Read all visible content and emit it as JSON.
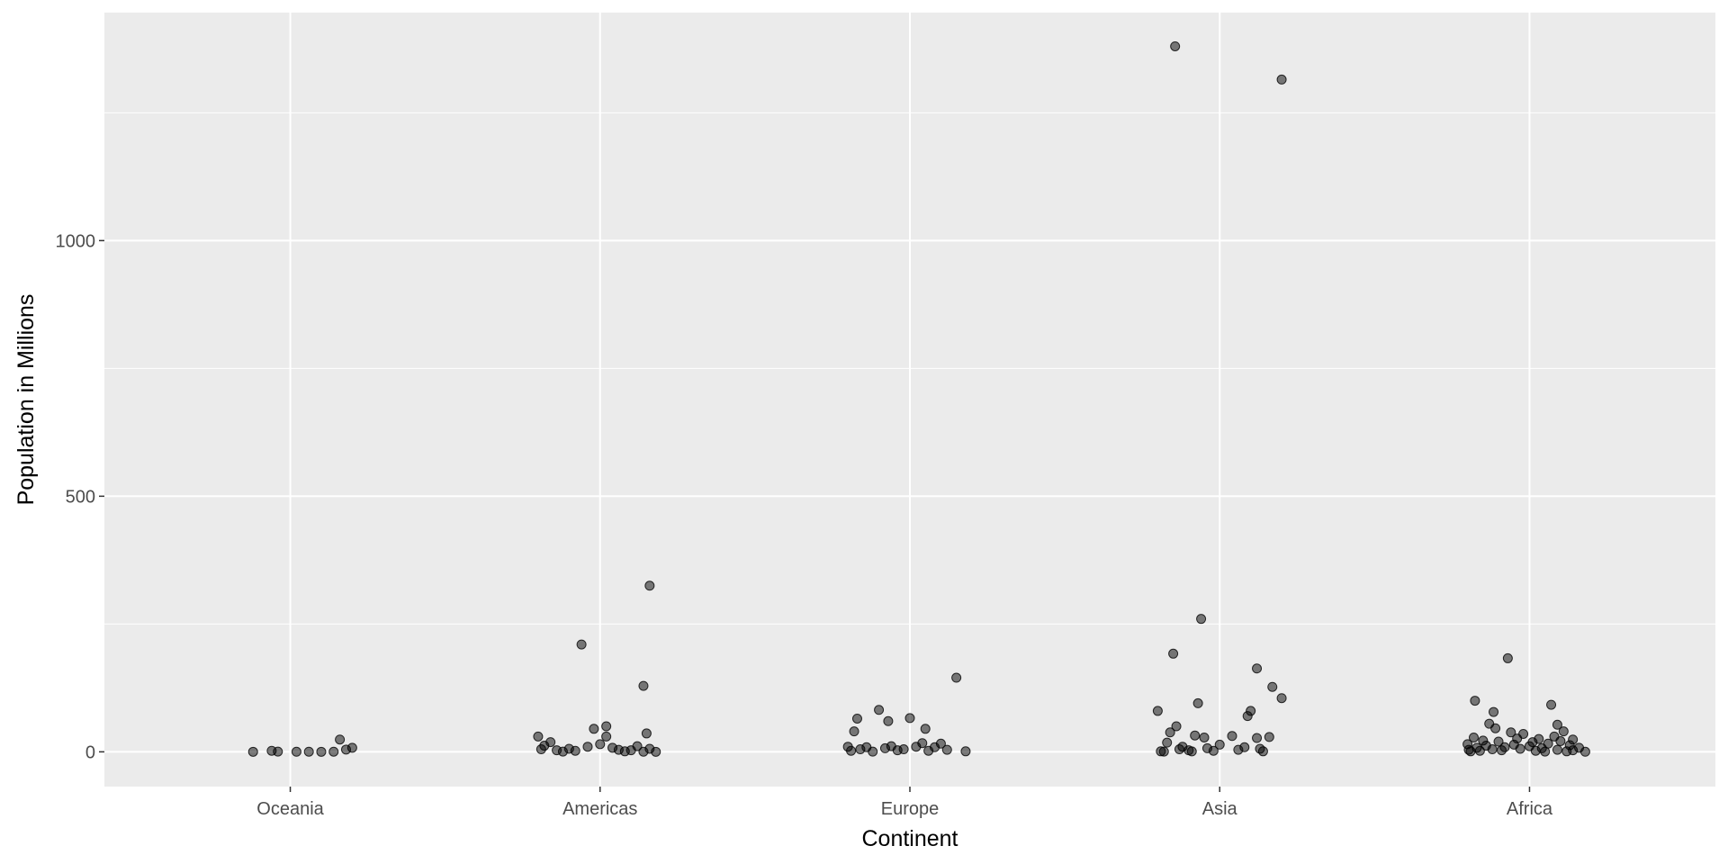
{
  "chart_data": {
    "type": "scatter",
    "title": "",
    "xlabel": "Continent",
    "ylabel": "Population in Millions",
    "categories": [
      "Oceania",
      "Americas",
      "Europe",
      "Asia",
      "Africa"
    ],
    "ylim": [
      -68,
      1446
    ],
    "y_ticks": [
      0,
      500,
      1000
    ],
    "y_minor_ticks": [
      250,
      750,
      1250
    ],
    "grid": true,
    "legend": "none",
    "colors": {
      "panel_background": "#ebebeb",
      "grid_line": "#ffffff",
      "point_fill": "#000000",
      "point_opacity": 0.5
    },
    "series": [
      {
        "category": "Oceania",
        "points": [
          {
            "jitter": -0.06,
            "y": 0.1
          },
          {
            "jitter": -0.03,
            "y": 2
          },
          {
            "jitter": -0.02,
            "y": 0.5
          },
          {
            "jitter": 0.01,
            "y": 0.2
          },
          {
            "jitter": 0.03,
            "y": 0.3
          },
          {
            "jitter": 0.05,
            "y": 0.1
          },
          {
            "jitter": 0.07,
            "y": 0.3
          },
          {
            "jitter": 0.08,
            "y": 24
          },
          {
            "jitter": 0.09,
            "y": 4.5
          },
          {
            "jitter": 0.1,
            "y": 8
          }
        ]
      },
      {
        "category": "Americas",
        "points": [
          {
            "jitter": -0.1,
            "y": 30
          },
          {
            "jitter": -0.095,
            "y": 5
          },
          {
            "jitter": -0.09,
            "y": 12
          },
          {
            "jitter": -0.08,
            "y": 19
          },
          {
            "jitter": -0.07,
            "y": 3
          },
          {
            "jitter": -0.06,
            "y": 0.5
          },
          {
            "jitter": -0.05,
            "y": 6
          },
          {
            "jitter": -0.04,
            "y": 2
          },
          {
            "jitter": -0.03,
            "y": 210
          },
          {
            "jitter": -0.02,
            "y": 10
          },
          {
            "jitter": -0.01,
            "y": 45
          },
          {
            "jitter": 0.0,
            "y": 15
          },
          {
            "jitter": 0.01,
            "y": 50
          },
          {
            "jitter": 0.01,
            "y": 30
          },
          {
            "jitter": 0.02,
            "y": 8
          },
          {
            "jitter": 0.03,
            "y": 4
          },
          {
            "jitter": 0.04,
            "y": 1
          },
          {
            "jitter": 0.05,
            "y": 3
          },
          {
            "jitter": 0.06,
            "y": 11
          },
          {
            "jitter": 0.07,
            "y": 0.3
          },
          {
            "jitter": 0.07,
            "y": 129
          },
          {
            "jitter": 0.075,
            "y": 36
          },
          {
            "jitter": 0.08,
            "y": 6
          },
          {
            "jitter": 0.08,
            "y": 325
          },
          {
            "jitter": 0.09,
            "y": 0.1
          }
        ]
      },
      {
        "category": "Europe",
        "points": [
          {
            "jitter": -0.1,
            "y": 10
          },
          {
            "jitter": -0.095,
            "y": 2
          },
          {
            "jitter": -0.09,
            "y": 40
          },
          {
            "jitter": -0.085,
            "y": 65
          },
          {
            "jitter": -0.08,
            "y": 5
          },
          {
            "jitter": -0.07,
            "y": 9
          },
          {
            "jitter": -0.06,
            "y": 0.4
          },
          {
            "jitter": -0.05,
            "y": 82
          },
          {
            "jitter": -0.04,
            "y": 7
          },
          {
            "jitter": -0.035,
            "y": 60
          },
          {
            "jitter": -0.03,
            "y": 11
          },
          {
            "jitter": -0.02,
            "y": 3
          },
          {
            "jitter": -0.01,
            "y": 5
          },
          {
            "jitter": 0.0,
            "y": 66
          },
          {
            "jitter": 0.01,
            "y": 10
          },
          {
            "jitter": 0.02,
            "y": 17
          },
          {
            "jitter": 0.025,
            "y": 45
          },
          {
            "jitter": 0.03,
            "y": 2
          },
          {
            "jitter": 0.04,
            "y": 9
          },
          {
            "jitter": 0.05,
            "y": 16
          },
          {
            "jitter": 0.06,
            "y": 4
          },
          {
            "jitter": 0.075,
            "y": 145
          },
          {
            "jitter": 0.09,
            "y": 1
          }
        ]
      },
      {
        "category": "Asia",
        "points": [
          {
            "jitter": -0.1,
            "y": 80
          },
          {
            "jitter": -0.095,
            "y": 1
          },
          {
            "jitter": -0.09,
            "y": 0.5
          },
          {
            "jitter": -0.085,
            "y": 18
          },
          {
            "jitter": -0.08,
            "y": 38
          },
          {
            "jitter": -0.075,
            "y": 192
          },
          {
            "jitter": -0.072,
            "y": 1380
          },
          {
            "jitter": -0.07,
            "y": 50
          },
          {
            "jitter": -0.065,
            "y": 5
          },
          {
            "jitter": -0.06,
            "y": 10
          },
          {
            "jitter": -0.05,
            "y": 3
          },
          {
            "jitter": -0.045,
            "y": 0.8
          },
          {
            "jitter": -0.04,
            "y": 32
          },
          {
            "jitter": -0.035,
            "y": 95
          },
          {
            "jitter": -0.03,
            "y": 260
          },
          {
            "jitter": -0.025,
            "y": 28
          },
          {
            "jitter": -0.02,
            "y": 7
          },
          {
            "jitter": -0.01,
            "y": 2
          },
          {
            "jitter": 0.0,
            "y": 14
          },
          {
            "jitter": 0.02,
            "y": 31
          },
          {
            "jitter": 0.03,
            "y": 4
          },
          {
            "jitter": 0.04,
            "y": 9
          },
          {
            "jitter": 0.045,
            "y": 70
          },
          {
            "jitter": 0.05,
            "y": 80
          },
          {
            "jitter": 0.06,
            "y": 27
          },
          {
            "jitter": 0.06,
            "y": 163
          },
          {
            "jitter": 0.065,
            "y": 6
          },
          {
            "jitter": 0.07,
            "y": 1
          },
          {
            "jitter": 0.08,
            "y": 29
          },
          {
            "jitter": 0.085,
            "y": 127
          },
          {
            "jitter": 0.1,
            "y": 105
          },
          {
            "jitter": 0.1,
            "y": 1315
          }
        ]
      },
      {
        "category": "Africa",
        "points": [
          {
            "jitter": -0.1,
            "y": 15
          },
          {
            "jitter": -0.098,
            "y": 4
          },
          {
            "jitter": -0.095,
            "y": 1
          },
          {
            "jitter": -0.09,
            "y": 28
          },
          {
            "jitter": -0.088,
            "y": 100
          },
          {
            "jitter": -0.085,
            "y": 8
          },
          {
            "jitter": -0.08,
            "y": 2
          },
          {
            "jitter": -0.075,
            "y": 22
          },
          {
            "jitter": -0.07,
            "y": 12
          },
          {
            "jitter": -0.065,
            "y": 55
          },
          {
            "jitter": -0.06,
            "y": 5
          },
          {
            "jitter": -0.058,
            "y": 78
          },
          {
            "jitter": -0.055,
            "y": 46
          },
          {
            "jitter": -0.05,
            "y": 20
          },
          {
            "jitter": -0.045,
            "y": 3
          },
          {
            "jitter": -0.04,
            "y": 9
          },
          {
            "jitter": -0.035,
            "y": 183
          },
          {
            "jitter": -0.03,
            "y": 38
          },
          {
            "jitter": -0.025,
            "y": 14
          },
          {
            "jitter": -0.02,
            "y": 26
          },
          {
            "jitter": -0.015,
            "y": 6
          },
          {
            "jitter": -0.01,
            "y": 35
          },
          {
            "jitter": 0.0,
            "y": 11
          },
          {
            "jitter": 0.005,
            "y": 19
          },
          {
            "jitter": 0.01,
            "y": 2
          },
          {
            "jitter": 0.015,
            "y": 25
          },
          {
            "jitter": 0.02,
            "y": 7
          },
          {
            "jitter": 0.025,
            "y": 0.5
          },
          {
            "jitter": 0.03,
            "y": 16
          },
          {
            "jitter": 0.035,
            "y": 92
          },
          {
            "jitter": 0.04,
            "y": 30
          },
          {
            "jitter": 0.045,
            "y": 4
          },
          {
            "jitter": 0.045,
            "y": 53
          },
          {
            "jitter": 0.05,
            "y": 21
          },
          {
            "jitter": 0.055,
            "y": 40
          },
          {
            "jitter": 0.06,
            "y": 1
          },
          {
            "jitter": 0.065,
            "y": 13
          },
          {
            "jitter": 0.07,
            "y": 3
          },
          {
            "jitter": 0.07,
            "y": 24
          },
          {
            "jitter": 0.08,
            "y": 8
          },
          {
            "jitter": 0.09,
            "y": 0.2
          }
        ]
      }
    ]
  }
}
